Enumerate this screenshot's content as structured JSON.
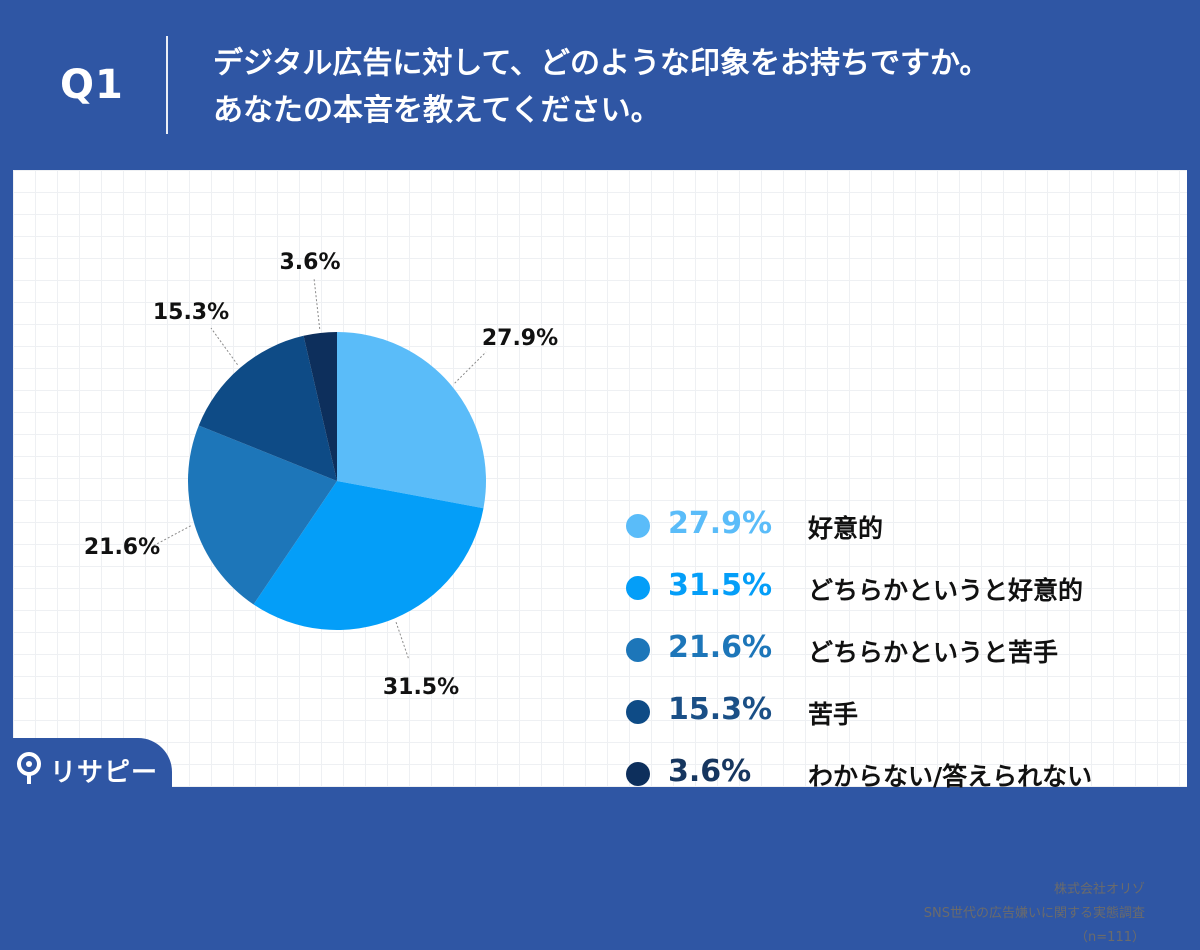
{
  "header": {
    "question_number": "Q1",
    "question_line1": "デジタル広告に対して、どのような印象をお持ちですか。",
    "question_line2": "あなたの本音を教えてください。"
  },
  "chart_data": {
    "type": "pie",
    "categories": [
      "好意的",
      "どちらかというと好意的",
      "どちらかというと苦手",
      "苦手",
      "わからない/答えられない"
    ],
    "values": [
      27.9,
      31.5,
      21.6,
      15.3,
      3.6
    ],
    "data_labels": [
      "27.9%",
      "31.5%",
      "21.6%",
      "15.3%",
      "3.6%"
    ],
    "colors": [
      "#5abcf9",
      "#049ef8",
      "#1d76b9",
      "#0e4b86",
      "#0d2f5c"
    ],
    "legend_placement": "right"
  },
  "legend": [
    {
      "pct": "27.9%",
      "label": "好意的",
      "color": "#5abcf9",
      "text_color": "#5abcf9"
    },
    {
      "pct": "31.5%",
      "label": "どちらかというと好意的",
      "color": "#049ef8",
      "text_color": "#049ef8"
    },
    {
      "pct": "21.6%",
      "label": "どちらかというと苦手",
      "color": "#1d76b9",
      "text_color": "#1d76b9"
    },
    {
      "pct": "15.3%",
      "label": "苦手",
      "color": "#0e4b86",
      "text_color": "#1a4f86"
    },
    {
      "pct": "3.6%",
      "label": "わからない/答えられない",
      "color": "#0d2f5c",
      "text_color": "#16365f"
    }
  ],
  "source": {
    "line1": "株式会社オリゾ",
    "line2": "SNS世代の広告嫌いに関する実態調査",
    "line3": "（n=111）"
  },
  "logo": {
    "text": "リサピー"
  },
  "colors": {
    "background": "#2f56a4",
    "panel": "#ffffff"
  }
}
